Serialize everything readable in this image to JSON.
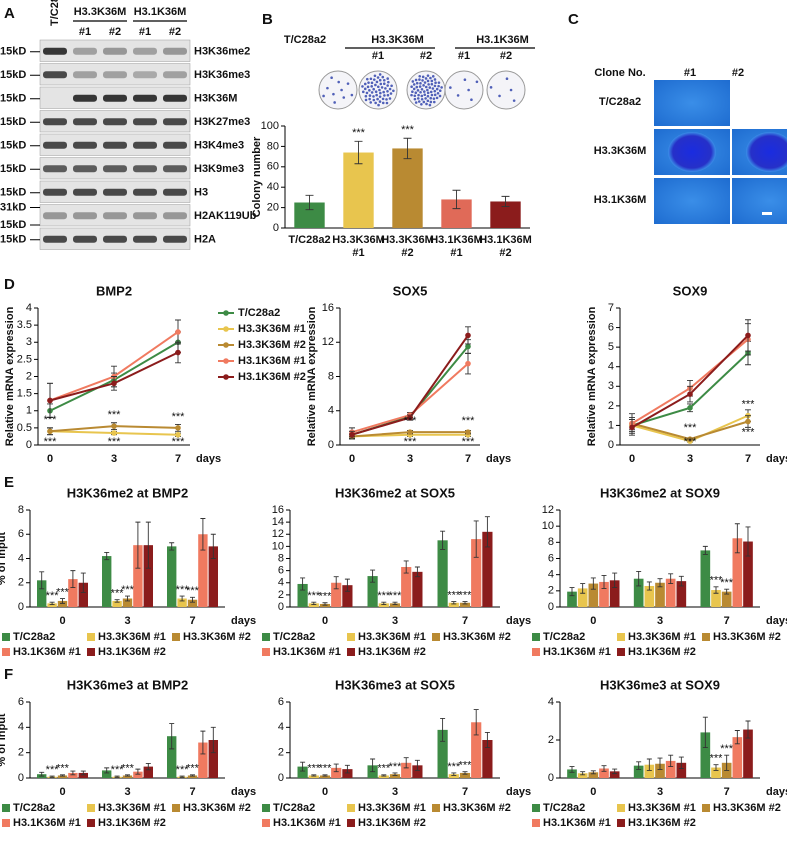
{
  "panel_labels": [
    "A",
    "B",
    "C",
    "D",
    "E",
    "F"
  ],
  "blot": {
    "groups": [
      "T/C28a2",
      "H3.3K36M",
      "H3.1K36M"
    ],
    "clones": [
      "#1",
      "#2",
      "#1",
      "#2"
    ],
    "rows": [
      {
        "markers": [
          "15kD"
        ],
        "label": "H3K36me2"
      },
      {
        "markers": [
          "15kD"
        ],
        "label": "H3K36me3"
      },
      {
        "markers": [
          "15kD"
        ],
        "label": "H3K36M"
      },
      {
        "markers": [
          "15kD"
        ],
        "label": "H3K27me3"
      },
      {
        "markers": [
          "15kD"
        ],
        "label": "H3K4me3"
      },
      {
        "markers": [
          "15kD"
        ],
        "label": "H3K9me3"
      },
      {
        "markers": [
          "15kD"
        ],
        "label": "H3"
      },
      {
        "markers": [
          "31kD",
          "15kD"
        ],
        "label": "H2AK119Ub"
      },
      {
        "markers": [
          "15kD"
        ],
        "label": "H2A"
      }
    ]
  },
  "plates": {
    "groups": [
      "T/C28a2",
      "H3.3K36M",
      "H3.1K36M"
    ],
    "clones": [
      "#1",
      "#2",
      "#1",
      "#2"
    ]
  },
  "images": {
    "header": "Clone No.",
    "columns": [
      "#1",
      "#2"
    ],
    "rows": [
      "T/C28a2",
      "H3.3K36M",
      "H3.1K36M"
    ]
  },
  "chart_data": [
    {
      "type": "bar",
      "y_label": "Colony number",
      "categories": [
        "T/C28a2",
        "H3.3K36M #1",
        "H3.3K36M #2",
        "H3.1K36M #1",
        "H3.1K36M #2"
      ],
      "values": [
        25,
        74,
        78,
        28,
        26
      ],
      "errors": [
        7,
        11,
        10,
        9,
        5
      ],
      "colors": [
        "#3d8b45",
        "#e8c54e",
        "#b98a32",
        "#e06a58",
        "#8b1c1c"
      ],
      "ylim": [
        0,
        100
      ],
      "yticks": [
        0,
        20,
        40,
        60,
        80,
        100
      ],
      "significance": {
        "label": "***",
        "categories": [
          1,
          2
        ]
      }
    },
    {
      "type": "line",
      "title": "BMP2",
      "y_label": "Relative mRNA expression",
      "x_label": "days",
      "categories": [
        "0",
        "3",
        "7"
      ],
      "ylim": [
        0,
        4
      ],
      "yticks": [
        0,
        0.5,
        1,
        1.5,
        2,
        2.5,
        3,
        3.5,
        4
      ],
      "legend": "right",
      "significance": {
        "label": "***",
        "categories": [
          0,
          1,
          2
        ]
      },
      "series": [
        {
          "name": "T/C28a2",
          "color": "#3d8b45",
          "values": [
            1,
            1.9,
            3.0
          ],
          "errors": [
            0.2,
            0.2,
            0.3
          ]
        },
        {
          "name": "H3.3K36M #1",
          "color": "#e8c54e",
          "values": [
            0.4,
            0.35,
            0.3
          ],
          "errors": [
            0.1,
            0.05,
            0.05
          ]
        },
        {
          "name": "H3.3K36M #2",
          "color": "#b98a32",
          "values": [
            0.4,
            0.55,
            0.5
          ],
          "errors": [
            0.1,
            0.1,
            0.1
          ]
        },
        {
          "name": "H3.1K36M #1",
          "color": "#f07a60",
          "values": [
            1.3,
            2.0,
            3.3
          ],
          "errors": [
            0.5,
            0.3,
            0.35
          ]
        },
        {
          "name": "H3.1K36M #2",
          "color": "#8b1c1c",
          "values": [
            1.3,
            1.8,
            2.7
          ],
          "errors": [
            0.5,
            0.2,
            0.3
          ]
        }
      ]
    },
    {
      "type": "line",
      "title": "SOX5",
      "y_label": "Relative mRNA expression",
      "x_label": "days",
      "categories": [
        "0",
        "3",
        "7"
      ],
      "ylim": [
        0,
        16
      ],
      "yticks": [
        0,
        4,
        8,
        12,
        16
      ],
      "significance": {
        "label": "***",
        "categories": [
          1,
          2
        ]
      },
      "series": [
        {
          "color": "#3d8b45",
          "values": [
            1.2,
            3.3,
            11.5
          ],
          "errors": [
            0.4,
            0.3,
            0.8
          ]
        },
        {
          "color": "#e8c54e",
          "values": [
            1.0,
            1.2,
            1.2
          ],
          "errors": [
            0.3,
            0.2,
            0.2
          ]
        },
        {
          "color": "#b98a32",
          "values": [
            1.0,
            1.5,
            1.5
          ],
          "errors": [
            0.3,
            0.2,
            0.2
          ]
        },
        {
          "color": "#f07a60",
          "values": [
            1.5,
            3.5,
            9.5
          ],
          "errors": [
            0.5,
            0.3,
            1.2
          ]
        },
        {
          "color": "#8b1c1c",
          "values": [
            1.2,
            3.2,
            12.8
          ],
          "errors": [
            0.4,
            0.3,
            1.0
          ]
        }
      ]
    },
    {
      "type": "line",
      "title": "SOX9",
      "y_label": "Relative mRNA expression",
      "x_label": "days",
      "categories": [
        "0",
        "3",
        "7"
      ],
      "ylim": [
        0,
        7
      ],
      "yticks": [
        0,
        1,
        2,
        3,
        4,
        5,
        6,
        7
      ],
      "significance": {
        "label": "***",
        "categories": [
          1,
          2
        ]
      },
      "series": [
        {
          "color": "#3d8b45",
          "values": [
            1,
            1.9,
            4.7
          ],
          "errors": [
            0.3,
            0.2,
            0.6
          ]
        },
        {
          "color": "#e8c54e",
          "values": [
            1,
            0.2,
            1.5
          ],
          "errors": [
            0.3,
            0.05,
            0.3
          ]
        },
        {
          "color": "#b98a32",
          "values": [
            1.1,
            0.3,
            1.2
          ],
          "errors": [
            0.3,
            0.05,
            0.3
          ]
        },
        {
          "color": "#f07a60",
          "values": [
            1.1,
            2.9,
            5.4
          ],
          "errors": [
            0.5,
            0.4,
            0.8
          ]
        },
        {
          "color": "#8b1c1c",
          "values": [
            0.9,
            2.6,
            5.6
          ],
          "errors": [
            0.4,
            0.4,
            0.8
          ]
        }
      ]
    },
    {
      "type": "grouped-bar",
      "title": "H3K36me2 at BMP2",
      "y_label": "% of input",
      "x_label": "days",
      "categories": [
        "0",
        "3",
        "7"
      ],
      "ylim": [
        0,
        8
      ],
      "yticks": [
        0,
        2,
        4,
        6,
        8
      ],
      "legend": "bottom",
      "significance": {
        "label": "***",
        "categories": [
          0,
          1,
          2
        ]
      },
      "series": [
        {
          "name": "T/C28a2",
          "color": "#3d8b45",
          "values": [
            2.2,
            4.2,
            5.0
          ],
          "errors": [
            0.7,
            0.3,
            0.3
          ]
        },
        {
          "name": "H3.3K36M #1",
          "color": "#e8c54e",
          "values": [
            0.3,
            0.5,
            0.7
          ],
          "errors": [
            0.1,
            0.1,
            0.2
          ]
        },
        {
          "name": "H3.3K36M #2",
          "color": "#b98a32",
          "values": [
            0.5,
            0.7,
            0.6
          ],
          "errors": [
            0.2,
            0.2,
            0.2
          ]
        },
        {
          "name": "H3.1K36M #1",
          "color": "#f07a60",
          "values": [
            2.3,
            5.1,
            6.0
          ],
          "errors": [
            0.7,
            1.9,
            1.3
          ]
        },
        {
          "name": "H3.1K36M #2",
          "color": "#8b1c1c",
          "values": [
            2.0,
            5.1,
            5.0
          ],
          "errors": [
            0.8,
            1.9,
            1.0
          ]
        }
      ]
    },
    {
      "type": "grouped-bar",
      "title": "H3K36me2 at SOX5",
      "x_label": "days",
      "categories": [
        "0",
        "3",
        "7"
      ],
      "ylim": [
        0,
        16
      ],
      "yticks": [
        0,
        2,
        4,
        6,
        8,
        10,
        12,
        14,
        16
      ],
      "legend": "bottom",
      "significance": {
        "label": "***",
        "categories": [
          0,
          1,
          2
        ]
      },
      "series": [
        {
          "name": "T/C28a2",
          "color": "#3d8b45",
          "values": [
            3.8,
            5.1,
            11.0
          ],
          "errors": [
            1.0,
            1.0,
            1.5
          ]
        },
        {
          "name": "H3.3K36M #1",
          "color": "#e8c54e",
          "values": [
            0.6,
            0.6,
            0.7
          ],
          "errors": [
            0.2,
            0.2,
            0.2
          ]
        },
        {
          "name": "H3.3K36M #2",
          "color": "#b98a32",
          "values": [
            0.5,
            0.6,
            0.7
          ],
          "errors": [
            0.2,
            0.2,
            0.2
          ]
        },
        {
          "name": "H3.1K36M #1",
          "color": "#f07a60",
          "values": [
            4.0,
            6.6,
            11.2
          ],
          "errors": [
            1.0,
            1.0,
            3.0
          ]
        },
        {
          "name": "H3.1K36M #2",
          "color": "#8b1c1c",
          "values": [
            3.6,
            5.8,
            12.4
          ],
          "errors": [
            1.0,
            0.8,
            2.5
          ]
        }
      ]
    },
    {
      "type": "grouped-bar",
      "title": "H3K36me2 at SOX9",
      "x_label": "days",
      "categories": [
        "0",
        "3",
        "7"
      ],
      "ylim": [
        0,
        12
      ],
      "yticks": [
        0,
        2,
        4,
        6,
        8,
        10,
        12
      ],
      "legend": "bottom",
      "significance": {
        "label": "***",
        "categories": [
          2
        ]
      },
      "series": [
        {
          "name": "T/C28a2",
          "color": "#3d8b45",
          "values": [
            1.9,
            3.5,
            7.0
          ],
          "errors": [
            0.5,
            0.9,
            0.5
          ]
        },
        {
          "name": "H3.3K36M #1",
          "color": "#e8c54e",
          "values": [
            2.3,
            2.6,
            2.1
          ],
          "errors": [
            0.6,
            0.5,
            0.4
          ]
        },
        {
          "name": "H3.3K36M #2",
          "color": "#b98a32",
          "values": [
            2.9,
            3.0,
            1.9
          ],
          "errors": [
            0.7,
            0.5,
            0.3
          ]
        },
        {
          "name": "H3.1K36M #1",
          "color": "#f07a60",
          "values": [
            3.1,
            3.5,
            8.5
          ],
          "errors": [
            0.8,
            0.6,
            1.8
          ]
        },
        {
          "name": "H3.1K36M #2",
          "color": "#8b1c1c",
          "values": [
            3.3,
            3.2,
            8.1
          ],
          "errors": [
            0.9,
            0.6,
            1.8
          ]
        }
      ]
    },
    {
      "type": "grouped-bar",
      "title": "H3K36me3 at BMP2",
      "y_label": "% of input",
      "x_label": "days",
      "categories": [
        "0",
        "3",
        "7"
      ],
      "ylim": [
        0,
        6
      ],
      "yticks": [
        0,
        2,
        4,
        6
      ],
      "legend": "bottom",
      "significance": {
        "label": "***",
        "categories": [
          0,
          1,
          2
        ]
      },
      "series": [
        {
          "name": "T/C28a2",
          "color": "#3d8b45",
          "values": [
            0.3,
            0.6,
            3.3
          ],
          "errors": [
            0.15,
            0.2,
            1.0
          ]
        },
        {
          "name": "H3.3K36M #1",
          "color": "#e8c54e",
          "values": [
            0.1,
            0.1,
            0.1
          ],
          "errors": [
            0.05,
            0.05,
            0.05
          ]
        },
        {
          "name": "H3.3K36M #2",
          "color": "#b98a32",
          "values": [
            0.2,
            0.2,
            0.2
          ],
          "errors": [
            0.05,
            0.05,
            0.05
          ]
        },
        {
          "name": "H3.1K36M #1",
          "color": "#f07a60",
          "values": [
            0.4,
            0.5,
            2.8
          ],
          "errors": [
            0.15,
            0.2,
            0.9
          ]
        },
        {
          "name": "H3.1K36M #2",
          "color": "#8b1c1c",
          "values": [
            0.4,
            0.9,
            3.0
          ],
          "errors": [
            0.15,
            0.25,
            1.0
          ]
        }
      ]
    },
    {
      "type": "grouped-bar",
      "title": "H3K36me3 at SOX5",
      "x_label": "days",
      "categories": [
        "0",
        "3",
        "7"
      ],
      "ylim": [
        0,
        6
      ],
      "yticks": [
        0,
        2,
        4,
        6
      ],
      "legend": "bottom",
      "significance": {
        "label": "***",
        "categories": [
          0,
          1,
          2
        ]
      },
      "series": [
        {
          "name": "T/C28a2",
          "color": "#3d8b45",
          "values": [
            0.9,
            1.0,
            3.8
          ],
          "errors": [
            0.35,
            0.5,
            0.9
          ]
        },
        {
          "name": "H3.3K36M #1",
          "color": "#e8c54e",
          "values": [
            0.2,
            0.2,
            0.3
          ],
          "errors": [
            0.05,
            0.05,
            0.1
          ]
        },
        {
          "name": "H3.3K36M #2",
          "color": "#b98a32",
          "values": [
            0.2,
            0.3,
            0.4
          ],
          "errors": [
            0.05,
            0.1,
            0.1
          ]
        },
        {
          "name": "H3.1K36M #1",
          "color": "#f07a60",
          "values": [
            0.8,
            1.2,
            4.4
          ],
          "errors": [
            0.3,
            0.4,
            1.0
          ]
        },
        {
          "name": "H3.1K36M #2",
          "color": "#8b1c1c",
          "values": [
            0.7,
            1.0,
            3.0
          ],
          "errors": [
            0.3,
            0.4,
            0.6
          ]
        }
      ]
    },
    {
      "type": "grouped-bar",
      "title": "H3K36me3 at SOX9",
      "x_label": "days",
      "categories": [
        "0",
        "3",
        "7"
      ],
      "ylim": [
        0,
        4
      ],
      "yticks": [
        0,
        2,
        4
      ],
      "legend": "bottom",
      "significance": {
        "label": "***",
        "categories": [
          2
        ]
      },
      "series": [
        {
          "name": "T/C28a2",
          "color": "#3d8b45",
          "values": [
            0.45,
            0.65,
            2.4
          ],
          "errors": [
            0.15,
            0.2,
            0.8
          ]
        },
        {
          "name": "H3.3K36M #1",
          "color": "#e8c54e",
          "values": [
            0.25,
            0.7,
            0.55
          ],
          "errors": [
            0.08,
            0.3,
            0.15
          ]
        },
        {
          "name": "H3.3K36M #2",
          "color": "#b98a32",
          "values": [
            0.3,
            0.75,
            0.8
          ],
          "errors": [
            0.08,
            0.3,
            0.4
          ]
        },
        {
          "name": "H3.1K36M #1",
          "color": "#f07a60",
          "values": [
            0.5,
            0.9,
            2.15
          ],
          "errors": [
            0.15,
            0.3,
            0.35
          ]
        },
        {
          "name": "H3.1K36M #2",
          "color": "#8b1c1c",
          "values": [
            0.35,
            0.8,
            2.55
          ],
          "errors": [
            0.12,
            0.3,
            0.45
          ]
        }
      ]
    }
  ]
}
